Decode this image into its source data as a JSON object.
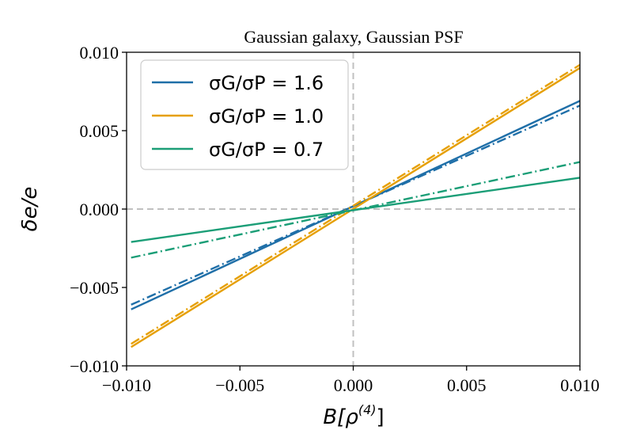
{
  "chart_data": {
    "type": "line",
    "title": "Gaussian galaxy, Gaussian PSF",
    "xlabel": "B[ρ(4)]",
    "xlabel_parts": {
      "base": "B[ρ",
      "sup": "(4)",
      "close": "]"
    },
    "ylabel": "δe/e",
    "xlim": [
      -0.01,
      0.01
    ],
    "ylim": [
      -0.01,
      0.01
    ],
    "xticks": [
      -0.01,
      -0.005,
      0.0,
      0.005,
      0.01
    ],
    "yticks": [
      -0.01,
      -0.005,
      0.0,
      0.005,
      0.01
    ],
    "xtick_labels": [
      "−0.010",
      "−0.005",
      "0.000",
      "0.005",
      "0.010"
    ],
    "ytick_labels": [
      "−0.010",
      "−0.005",
      "0.000",
      "0.005",
      "0.010"
    ],
    "reference_lines": {
      "x": 0.0,
      "y": 0.0,
      "color": "#c0c0c0",
      "style": "dashed"
    },
    "legend_location": "upper-left",
    "series": [
      {
        "name": "σG/σP = 1.6",
        "legend_label": "σG/σP = 1.6",
        "color": "#1f6fa8",
        "solid": {
          "x": [
            -0.0098,
            0.01
          ],
          "y": [
            -0.0064,
            0.0069
          ]
        },
        "dashdot": {
          "x": [
            -0.0098,
            0.01
          ],
          "y": [
            -0.0061,
            0.0066
          ]
        }
      },
      {
        "name": "σG/σP = 1.0",
        "legend_label": "σG/σP = 1.0",
        "color": "#e69f00",
        "solid": {
          "x": [
            -0.0098,
            0.01
          ],
          "y": [
            -0.0088,
            0.009
          ]
        },
        "dashdot": {
          "x": [
            -0.0098,
            0.01
          ],
          "y": [
            -0.0086,
            0.0092
          ]
        }
      },
      {
        "name": "σG/σP = 0.7",
        "legend_label": "σG/σP = 0.7",
        "color": "#1b9e77",
        "solid": {
          "x": [
            -0.0098,
            0.01
          ],
          "y": [
            -0.0021,
            0.002
          ]
        },
        "dashdot": {
          "x": [
            -0.0098,
            0.01
          ],
          "y": [
            -0.0031,
            0.003
          ]
        }
      }
    ]
  }
}
